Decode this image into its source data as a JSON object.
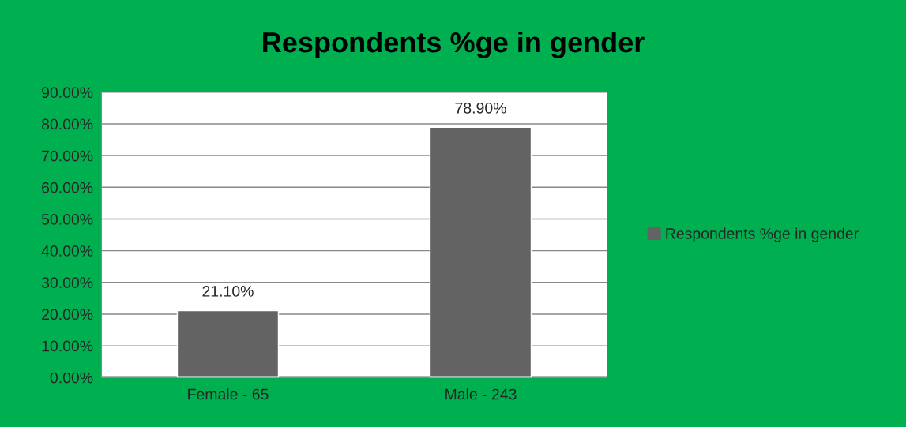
{
  "chart_data": {
    "type": "bar",
    "title": "Respondents %ge in gender",
    "categories": [
      "Female - 65",
      "Male - 243"
    ],
    "series": [
      {
        "name": "Respondents %ge in gender",
        "color": "#636363",
        "values": [
          21.1,
          78.9
        ],
        "value_labels": [
          "21.10%",
          "78.90%"
        ]
      }
    ],
    "ylim": [
      0,
      90
    ],
    "yticks": [
      {
        "value": 0,
        "label": "0.00%"
      },
      {
        "value": 10,
        "label": "10.00%"
      },
      {
        "value": 20,
        "label": "20.00%"
      },
      {
        "value": 30,
        "label": "30.00%"
      },
      {
        "value": 40,
        "label": "40.00%"
      },
      {
        "value": 50,
        "label": "50.00%"
      },
      {
        "value": 60,
        "label": "60.00%"
      },
      {
        "value": 70,
        "label": "70.00%"
      },
      {
        "value": 80,
        "label": "80.00%"
      },
      {
        "value": 90,
        "label": "90.00%"
      }
    ],
    "grid": "y",
    "legend": "right"
  }
}
